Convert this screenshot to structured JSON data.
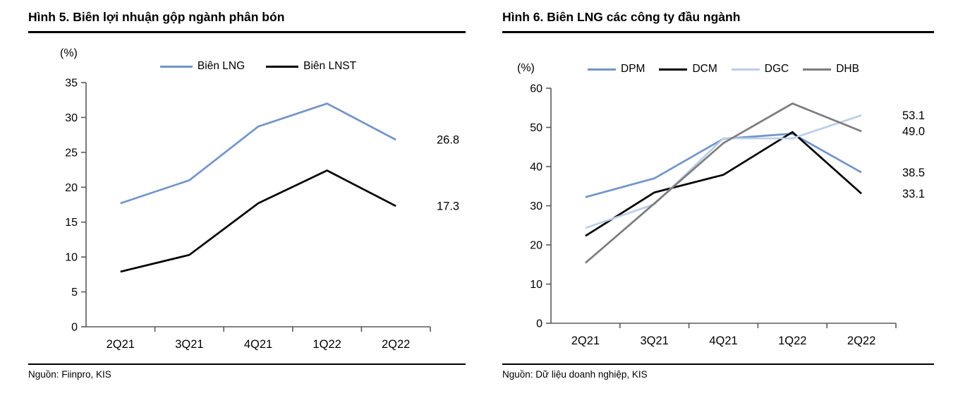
{
  "page": {
    "background": "#FFFFFF"
  },
  "chart_data": [
    {
      "type": "line",
      "title": "Hình 5. Biên lợi nhuận gộp ngành phân bón",
      "ylabel": "(%)",
      "xlabel": "",
      "source": "Nguồn: Fiinpro, KIS",
      "categories": [
        "2Q21",
        "3Q21",
        "4Q21",
        "1Q22",
        "2Q22"
      ],
      "ylim": [
        0,
        35
      ],
      "yticks": [
        0,
        5,
        10,
        15,
        20,
        25,
        30,
        35
      ],
      "grid": false,
      "legend_position": "top",
      "series": [
        {
          "name": "Biên LNG",
          "color": "#7295C8",
          "values": [
            17.7,
            21.0,
            28.7,
            32.0,
            26.8
          ],
          "end_label": "26.8"
        },
        {
          "name": "Biên LNST",
          "color": "#000000",
          "values": [
            7.9,
            10.3,
            17.7,
            22.4,
            17.3
          ],
          "end_label": "17.3"
        }
      ]
    },
    {
      "type": "line",
      "title": "Hình 6. Biên LNG các công ty đầu ngành",
      "ylabel": "(%)",
      "xlabel": "",
      "source": "Nguồn: Dữ liệu doanh nghiệp, KIS",
      "categories": [
        "2Q21",
        "3Q21",
        "4Q21",
        "1Q22",
        "2Q22"
      ],
      "ylim": [
        0,
        60
      ],
      "yticks": [
        0,
        10,
        20,
        30,
        40,
        50,
        60
      ],
      "grid": false,
      "legend_position": "top",
      "series": [
        {
          "name": "DPM",
          "color": "#7295C8",
          "values": [
            32.2,
            37.0,
            47.1,
            48.4,
            38.5
          ],
          "end_label": "38.5"
        },
        {
          "name": "DCM",
          "color": "#000000",
          "values": [
            22.3,
            33.4,
            37.9,
            48.8,
            33.1
          ],
          "end_label": "33.1"
        },
        {
          "name": "DGC",
          "color": "#BCCDE8",
          "values": [
            24.3,
            30.4,
            47.2,
            47.2,
            53.1
          ],
          "end_label": "53.1"
        },
        {
          "name": "DHB",
          "color": "#7C7C7C",
          "values": [
            15.4,
            30.6,
            46.0,
            56.1,
            49.0
          ],
          "end_label": "49.0"
        }
      ]
    }
  ]
}
